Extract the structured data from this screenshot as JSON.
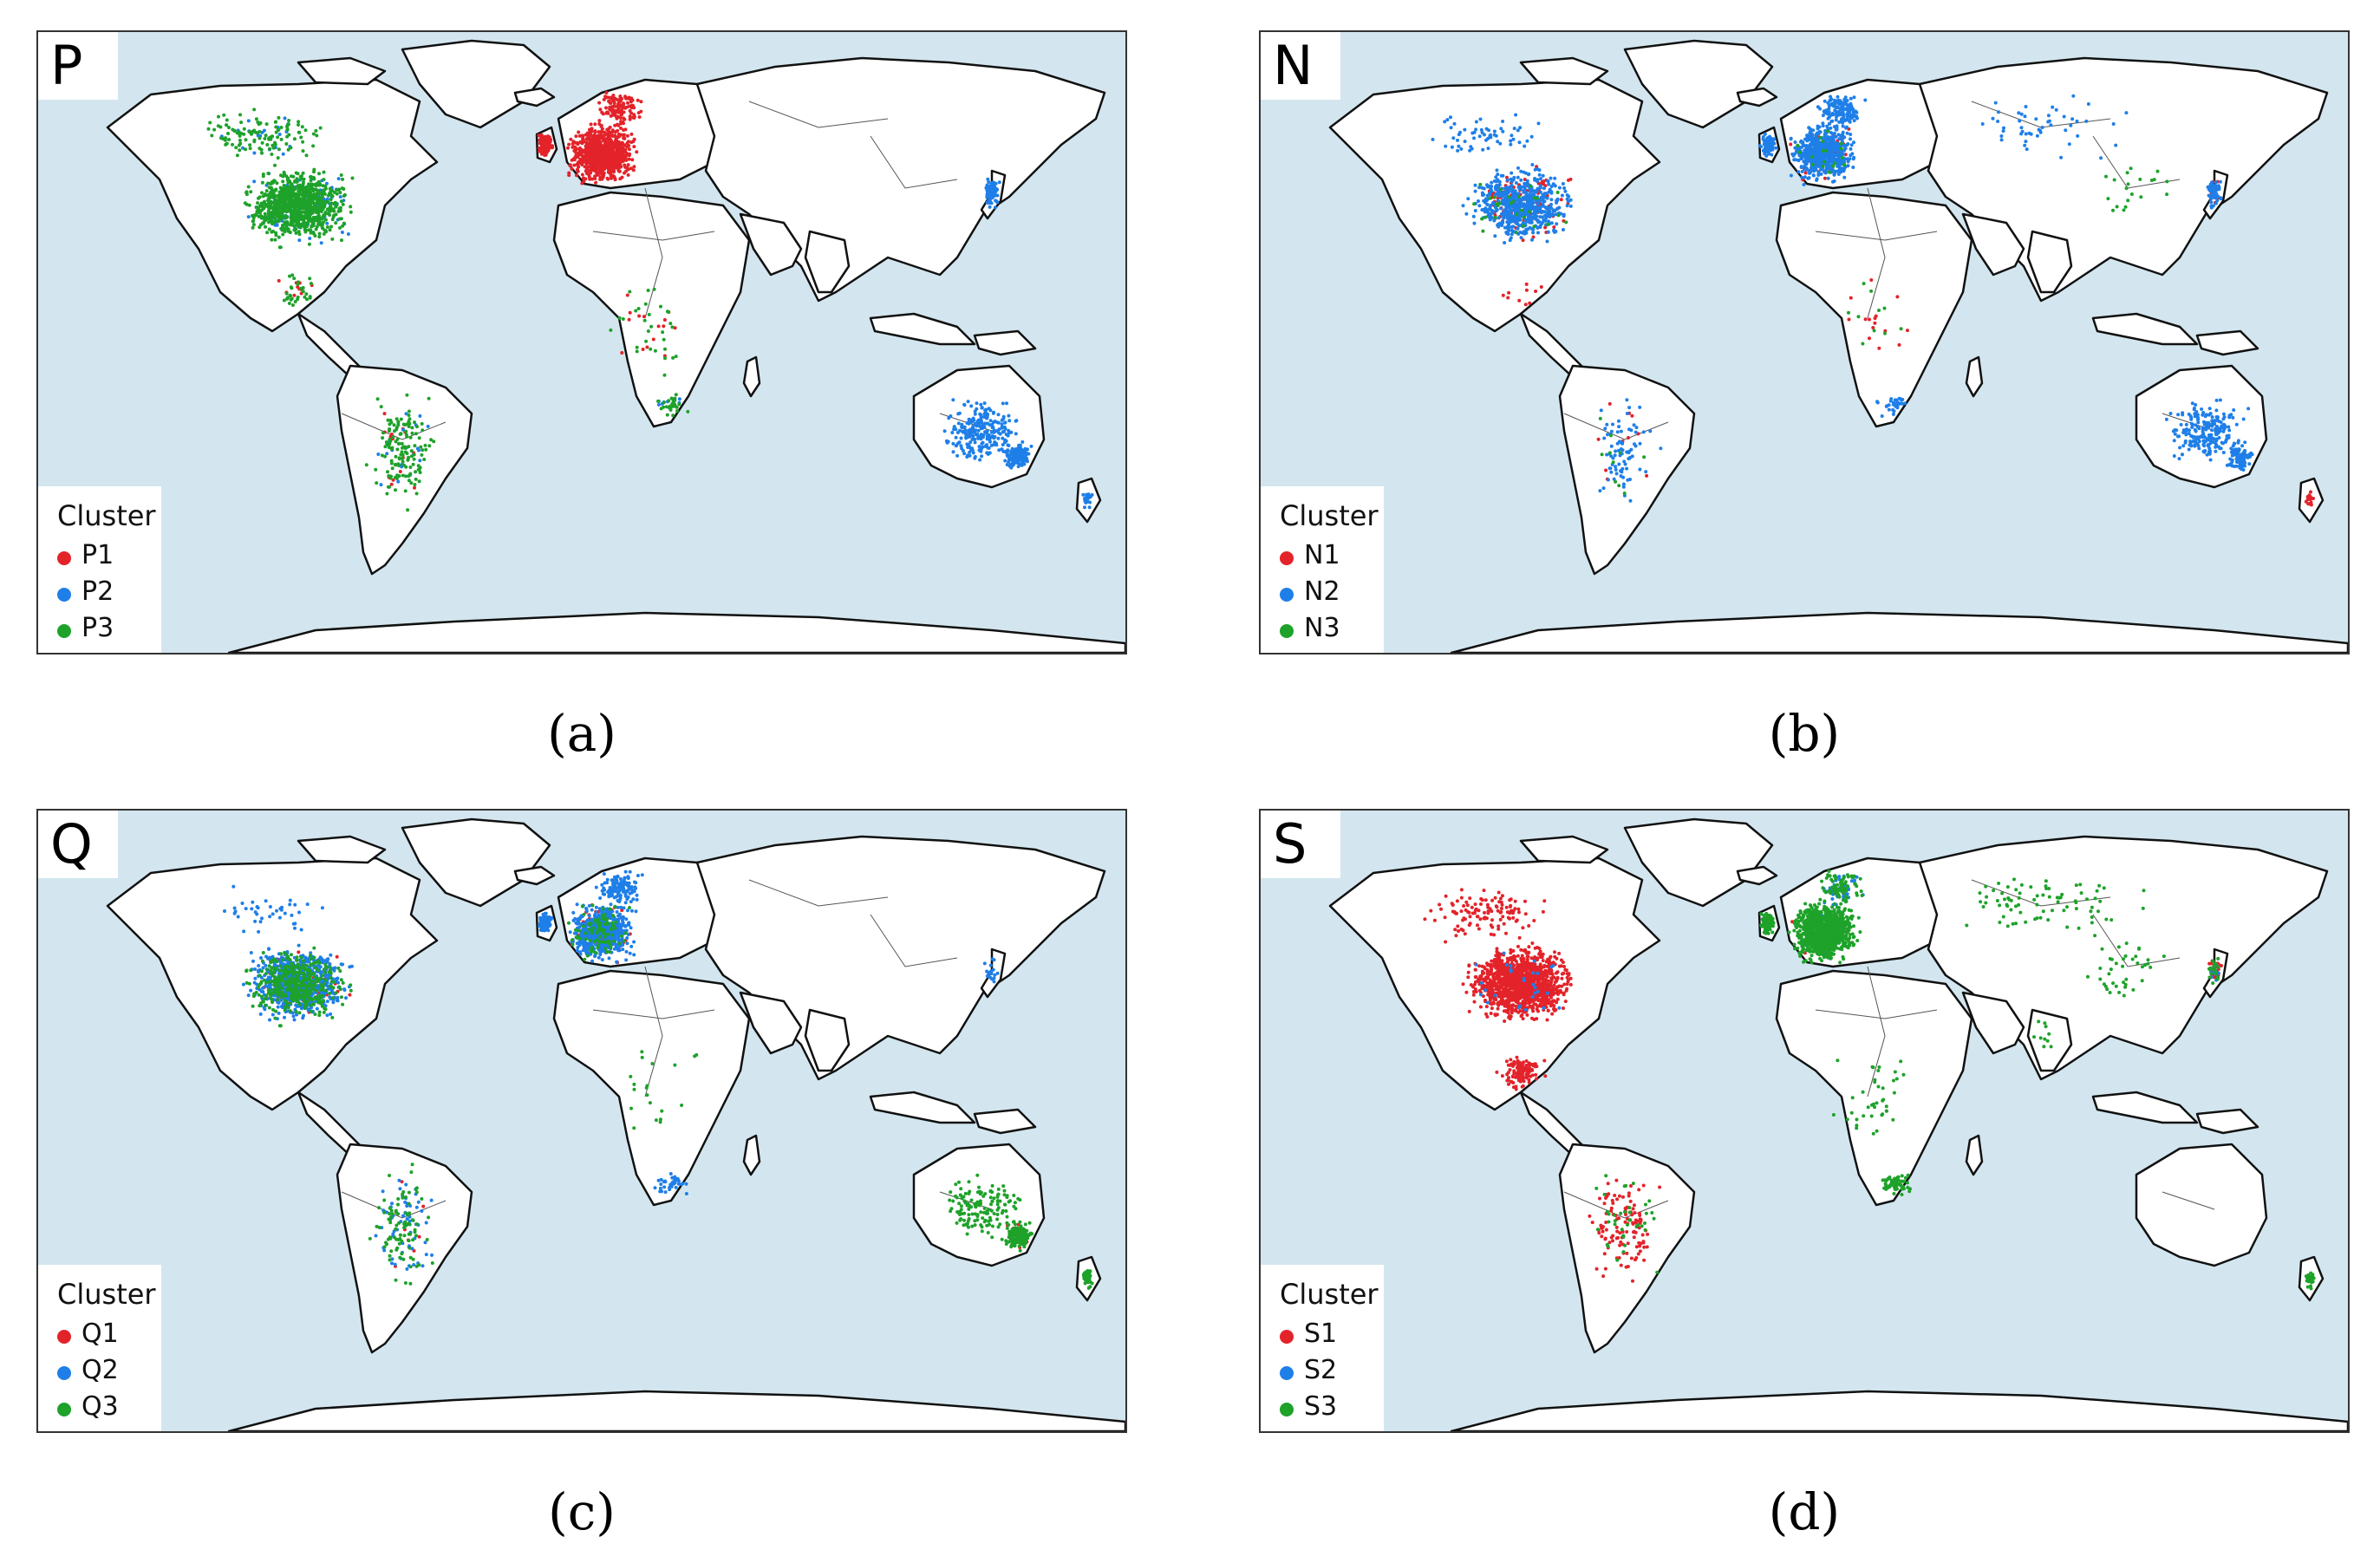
{
  "legend_title": "Cluster",
  "colors": {
    "red": "#e3232a",
    "blue": "#1f7fe8",
    "green": "#1ea22a"
  },
  "panels": [
    {
      "id": "a",
      "letter": "P",
      "caption": "(a)",
      "clusters": [
        {
          "label": "P1",
          "color": "#e3232a"
        },
        {
          "label": "P2",
          "color": "#1f7fe8"
        },
        {
          "label": "P3",
          "color": "#1ea22a"
        }
      ]
    },
    {
      "id": "b",
      "letter": "N",
      "caption": "(b)",
      "clusters": [
        {
          "label": "N1",
          "color": "#e3232a"
        },
        {
          "label": "N2",
          "color": "#1f7fe8"
        },
        {
          "label": "N3",
          "color": "#1ea22a"
        }
      ]
    },
    {
      "id": "c",
      "letter": "Q",
      "caption": "(c)",
      "clusters": [
        {
          "label": "Q1",
          "color": "#e3232a"
        },
        {
          "label": "Q2",
          "color": "#1f7fe8"
        },
        {
          "label": "Q3",
          "color": "#1ea22a"
        }
      ]
    },
    {
      "id": "d",
      "letter": "S",
      "caption": "(d)",
      "clusters": [
        {
          "label": "S1",
          "color": "#e3232a"
        },
        {
          "label": "S2",
          "color": "#1f7fe8"
        },
        {
          "label": "S3",
          "color": "#1ea22a"
        }
      ]
    }
  ]
}
